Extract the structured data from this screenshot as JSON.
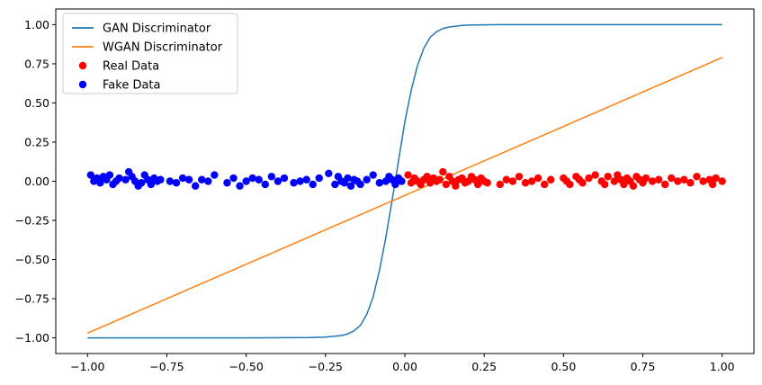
{
  "chart_data": {
    "type": "line+scatter",
    "title": "",
    "xlabel": "",
    "ylabel": "",
    "xlim": [
      -1.1,
      1.1
    ],
    "ylim": [
      -1.1,
      1.1
    ],
    "x_ticks": [
      -1.0,
      -0.75,
      -0.5,
      -0.25,
      0.0,
      0.25,
      0.5,
      0.75,
      1.0
    ],
    "x_tick_labels": [
      "−1.00",
      "−0.75",
      "−0.50",
      "−0.25",
      "0.00",
      "0.25",
      "0.50",
      "0.75",
      "1.00"
    ],
    "y_ticks": [
      1.0,
      0.75,
      0.5,
      0.25,
      0.0,
      -0.25,
      -0.5,
      -0.75,
      -1.0
    ],
    "y_tick_labels": [
      "1.00",
      "0.75",
      "0.50",
      "0.25",
      "0.00",
      "−0.25",
      "−0.50",
      "−0.75",
      "−1.00"
    ],
    "grid": false,
    "legend_position": "top-left",
    "series": [
      {
        "name": "GAN Discriminator",
        "kind": "line",
        "color": "#1f77b4",
        "x": [
          -1.0,
          -0.5,
          -0.3,
          -0.25,
          -0.2,
          -0.18,
          -0.16,
          -0.14,
          -0.12,
          -0.1,
          -0.08,
          -0.06,
          -0.04,
          -0.02,
          0.0,
          0.02,
          0.04,
          0.06,
          0.08,
          0.1,
          0.12,
          0.14,
          0.16,
          0.18,
          0.2,
          0.25,
          0.3,
          0.5,
          1.0
        ],
        "y": [
          -1.0,
          -1.0,
          -0.998,
          -0.995,
          -0.985,
          -0.975,
          -0.955,
          -0.92,
          -0.85,
          -0.74,
          -0.57,
          -0.36,
          -0.12,
          0.13,
          0.38,
          0.58,
          0.74,
          0.85,
          0.92,
          0.955,
          0.975,
          0.985,
          0.99,
          0.995,
          0.997,
          0.999,
          1.0,
          1.0,
          1.0
        ]
      },
      {
        "name": "WGAN Discriminator",
        "kind": "line",
        "color": "#ff7f0e",
        "x": [
          -1.0,
          1.0
        ],
        "y": [
          -0.97,
          0.79
        ]
      },
      {
        "name": "Real Data",
        "kind": "scatter",
        "color": "#ff0000",
        "x": [
          0.01,
          0.02,
          0.03,
          0.04,
          0.05,
          0.06,
          0.07,
          0.08,
          0.09,
          0.1,
          0.11,
          0.12,
          0.13,
          0.14,
          0.15,
          0.16,
          0.17,
          0.18,
          0.19,
          0.2,
          0.21,
          0.22,
          0.23,
          0.24,
          0.25,
          0.26,
          0.3,
          0.32,
          0.34,
          0.36,
          0.38,
          0.4,
          0.42,
          0.44,
          0.46,
          0.5,
          0.51,
          0.52,
          0.54,
          0.55,
          0.56,
          0.58,
          0.6,
          0.62,
          0.63,
          0.64,
          0.66,
          0.67,
          0.68,
          0.69,
          0.7,
          0.71,
          0.72,
          0.73,
          0.74,
          0.75,
          0.76,
          0.78,
          0.8,
          0.82,
          0.84,
          0.86,
          0.88,
          0.9,
          0.92,
          0.94,
          0.96,
          0.97,
          0.98,
          1.0
        ],
        "y": [
          0.04,
          -0.01,
          0.02,
          0.0,
          -0.02,
          0.01,
          0.03,
          -0.01,
          0.02,
          0.0,
          0.01,
          0.06,
          -0.02,
          0.03,
          0.0,
          -0.03,
          0.01,
          0.02,
          -0.01,
          0.0,
          0.03,
          0.01,
          -0.02,
          0.02,
          0.0,
          -0.01,
          -0.02,
          0.01,
          0.0,
          0.03,
          -0.01,
          0.0,
          0.02,
          -0.02,
          0.01,
          0.02,
          0.0,
          -0.02,
          0.03,
          0.01,
          -0.01,
          0.02,
          0.04,
          0.0,
          -0.02,
          0.03,
          0.0,
          0.04,
          0.01,
          -0.02,
          0.02,
          0.0,
          -0.03,
          0.03,
          0.01,
          -0.01,
          0.02,
          0.0,
          0.01,
          -0.02,
          0.02,
          0.0,
          0.01,
          -0.01,
          0.03,
          0.0,
          0.01,
          -0.02,
          0.02,
          0.0
        ]
      },
      {
        "name": "Fake Data",
        "kind": "scatter",
        "color": "#0000ff",
        "x": [
          -0.99,
          -0.98,
          -0.97,
          -0.96,
          -0.95,
          -0.94,
          -0.93,
          -0.92,
          -0.91,
          -0.9,
          -0.88,
          -0.87,
          -0.86,
          -0.85,
          -0.84,
          -0.83,
          -0.82,
          -0.81,
          -0.8,
          -0.79,
          -0.78,
          -0.77,
          -0.74,
          -0.72,
          -0.7,
          -0.68,
          -0.66,
          -0.64,
          -0.62,
          -0.6,
          -0.56,
          -0.54,
          -0.52,
          -0.5,
          -0.48,
          -0.46,
          -0.44,
          -0.42,
          -0.4,
          -0.38,
          -0.35,
          -0.33,
          -0.31,
          -0.29,
          -0.27,
          -0.24,
          -0.22,
          -0.21,
          -0.2,
          -0.19,
          -0.18,
          -0.17,
          -0.16,
          -0.15,
          -0.14,
          -0.12,
          -0.1,
          -0.08,
          -0.06,
          -0.05,
          -0.04,
          -0.03,
          -0.02,
          -0.01
        ],
        "y": [
          0.04,
          0.0,
          0.02,
          -0.01,
          0.03,
          0.01,
          0.04,
          -0.02,
          0.0,
          0.02,
          0.01,
          0.06,
          0.03,
          0.0,
          -0.03,
          -0.01,
          0.04,
          0.01,
          -0.02,
          0.02,
          0.0,
          0.01,
          0.0,
          -0.01,
          0.02,
          0.01,
          -0.03,
          0.01,
          0.0,
          0.04,
          -0.01,
          0.02,
          -0.03,
          0.0,
          0.02,
          0.01,
          -0.02,
          0.03,
          0.0,
          0.02,
          -0.01,
          0.0,
          0.01,
          -0.02,
          0.02,
          0.05,
          -0.02,
          0.03,
          0.0,
          -0.01,
          0.02,
          -0.03,
          0.01,
          0.0,
          -0.02,
          0.01,
          0.04,
          -0.01,
          0.0,
          0.03,
          0.01,
          -0.02,
          0.02,
          0.0
        ]
      }
    ]
  }
}
